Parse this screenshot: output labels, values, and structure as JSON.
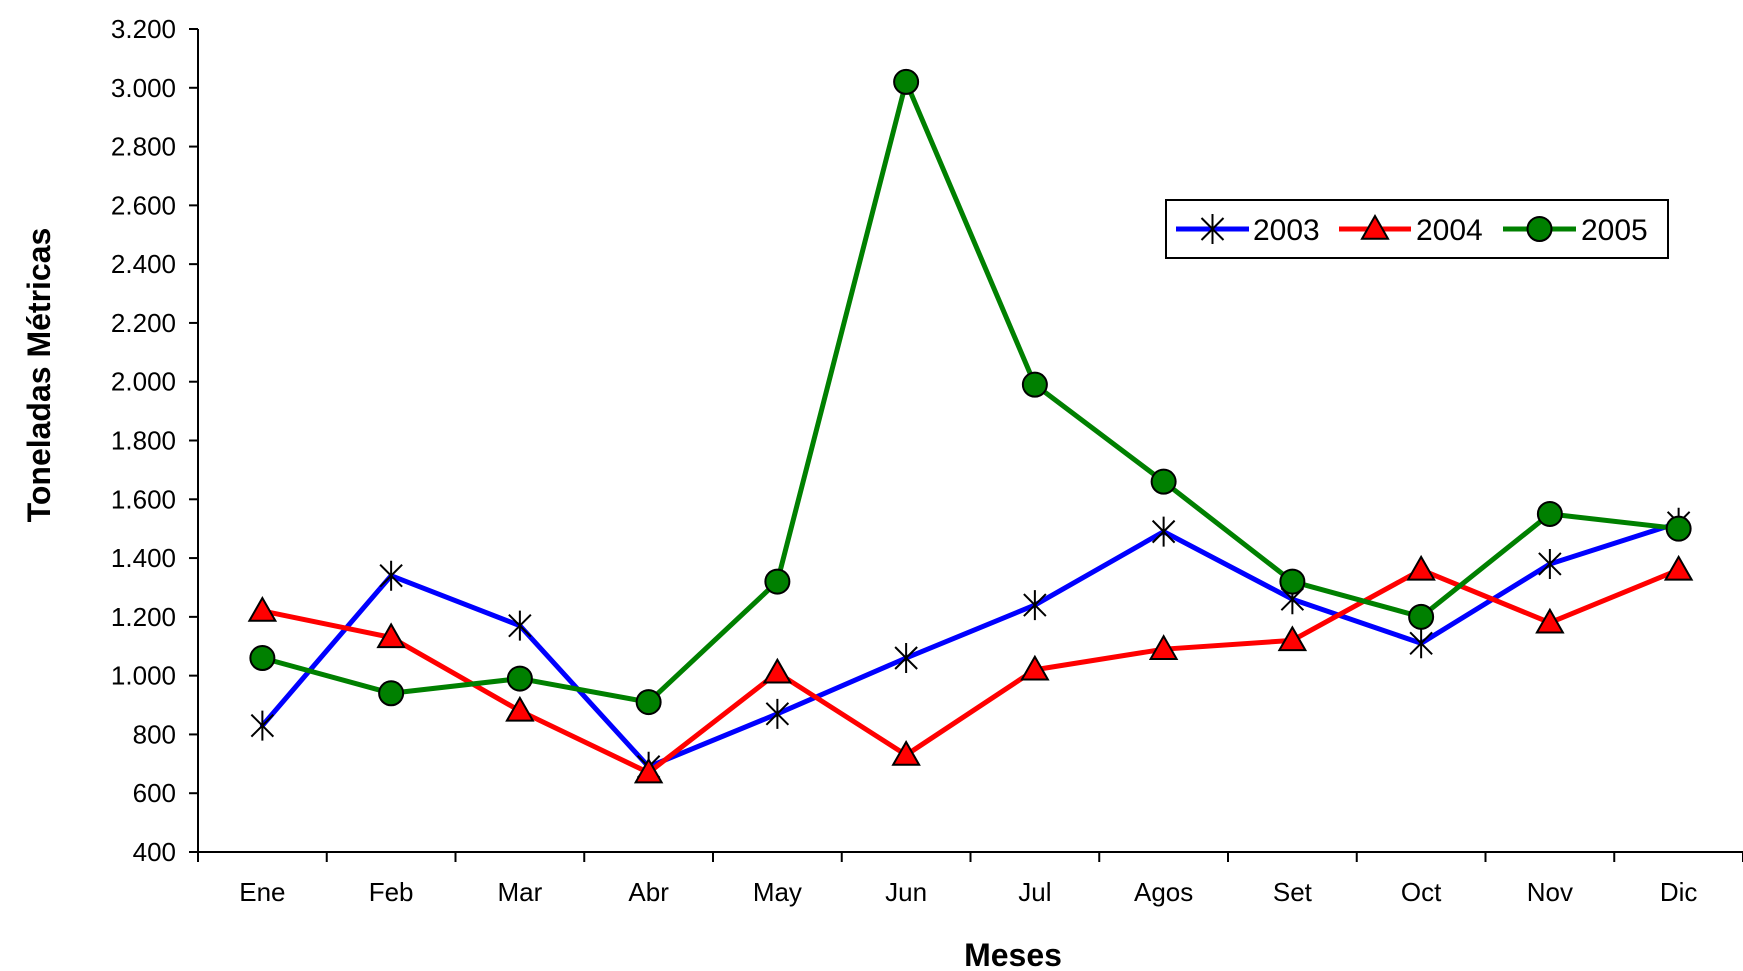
{
  "chart_data": {
    "type": "line",
    "title": "",
    "xlabel": "Meses",
    "ylabel": "Toneladas Métricas",
    "categories": [
      "Ene",
      "Feb",
      "Mar",
      "Abr",
      "May",
      "Jun",
      "Jul",
      "Agos",
      "Set",
      "Oct",
      "Nov",
      "Dic"
    ],
    "ylim": [
      400,
      3200
    ],
    "yticks": [
      400,
      600,
      800,
      1000,
      1200,
      1400,
      1600,
      1800,
      2000,
      2200,
      2400,
      2600,
      2800,
      3000,
      3200
    ],
    "ytick_labels": [
      "400",
      "600",
      "800",
      "1.000",
      "1.200",
      "1.400",
      "1.600",
      "1.800",
      "2.000",
      "2.200",
      "2.400",
      "2.600",
      "2.800",
      "3.000",
      "3.200"
    ],
    "grid": false,
    "legend_position": "top-right",
    "series": [
      {
        "name": "2003",
        "color": "#0000ff",
        "marker": "asterisk",
        "values": [
          830,
          1340,
          1170,
          690,
          870,
          1060,
          1240,
          1490,
          1260,
          1110,
          1380,
          1520
        ]
      },
      {
        "name": "2004",
        "color": "#ff0000",
        "marker": "triangle",
        "values": [
          1220,
          1130,
          880,
          670,
          1010,
          730,
          1020,
          1090,
          1120,
          1360,
          1180,
          1360
        ]
      },
      {
        "name": "2005",
        "color": "#008000",
        "marker": "circle",
        "values": [
          1060,
          940,
          990,
          910,
          1320,
          3020,
          1990,
          1660,
          1320,
          1200,
          1550,
          1500
        ]
      }
    ]
  }
}
